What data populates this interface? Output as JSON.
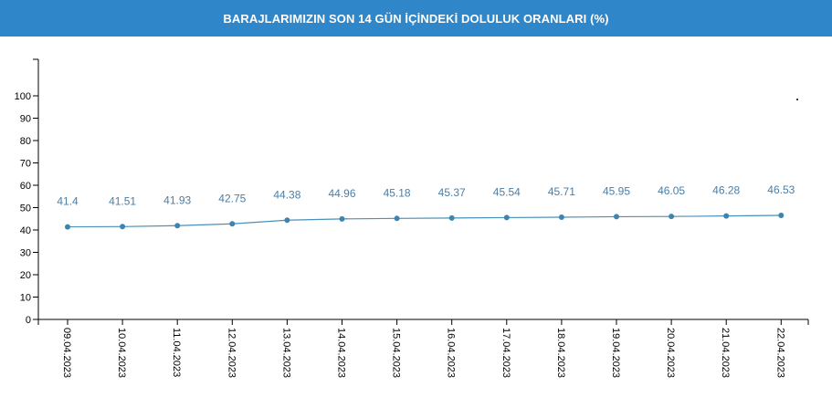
{
  "header": {
    "title": "BARAJLARIMIZIN SON 14 GÜN İÇİNDEKİ DOLULUK ORANLARI (%)"
  },
  "colors": {
    "header_bg": "#2f86c8",
    "line": "#4a90b8",
    "point": "#3d85b0",
    "value_label": "#4a7ea6",
    "axis": "#000000"
  },
  "chart_data": {
    "type": "line",
    "title": "BARAJLARIMIZIN SON 14 GÜN İÇİNDEKİ DOLULUK ORANLARI (%)",
    "xlabel": "",
    "ylabel": "",
    "ylim": [
      0,
      100
    ],
    "yticks": [
      "0",
      "10",
      "20",
      "30",
      "40",
      "50",
      "60",
      "70",
      "80",
      "90",
      "100"
    ],
    "grid": false,
    "categories": [
      "09.04.2023",
      "10.04.2023",
      "11.04.2023",
      "12.04.2023",
      "13.04.2023",
      "14.04.2023",
      "15.04.2023",
      "16.04.2023",
      "17.04.2023",
      "18.04.2023",
      "19.04.2023",
      "20.04.2023",
      "21.04.2023",
      "22.04.2023"
    ],
    "values": [
      41.4,
      41.51,
      41.93,
      42.75,
      44.38,
      44.96,
      45.18,
      45.37,
      45.54,
      45.71,
      45.95,
      46.05,
      46.28,
      46.53
    ],
    "labels": [
      "41.4",
      "41.51",
      "41.93",
      "42.75",
      "44.38",
      "44.96",
      "45.18",
      "45.37",
      "45.54",
      "45.71",
      "45.95",
      "46.05",
      "46.28",
      "46.53"
    ]
  }
}
